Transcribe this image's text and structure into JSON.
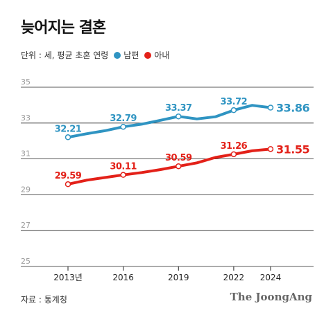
{
  "title": "늦어지는 결혼",
  "subtitle": "단위 : 세, 평균 초혼 연령",
  "source": "자료 : 통계청",
  "brand": "The JoongAng",
  "chart_data": {
    "type": "line",
    "ylim": [
      25,
      35
    ],
    "yticks": [
      "35",
      "33",
      "31",
      "29",
      "27",
      "25"
    ],
    "xticks": [
      {
        "x": 2013,
        "label": "2013년"
      },
      {
        "x": 2016,
        "label": "2016"
      },
      {
        "x": 2019,
        "label": "2019"
      },
      {
        "x": 2022,
        "label": "2022"
      },
      {
        "x": 2024,
        "label": "2024"
      }
    ],
    "x": [
      2013,
      2014,
      2015,
      2016,
      2017,
      2018,
      2019,
      2020,
      2021,
      2022,
      2023,
      2024
    ],
    "series": [
      {
        "name": "남편",
        "color": "#2f94c2",
        "values": [
          32.21,
          32.4,
          32.57,
          32.79,
          32.94,
          33.15,
          33.37,
          33.23,
          33.35,
          33.72,
          33.99,
          33.86
        ],
        "labels": [
          {
            "x": 2013,
            "text": "32.21"
          },
          {
            "x": 2016,
            "text": "32.79"
          },
          {
            "x": 2019,
            "text": "33.37"
          },
          {
            "x": 2022,
            "text": "33.72"
          },
          {
            "x": 2024,
            "text": "33.86"
          }
        ]
      },
      {
        "name": "아내",
        "color": "#e32119",
        "values": [
          29.59,
          29.81,
          29.96,
          30.11,
          30.24,
          30.4,
          30.59,
          30.78,
          31.08,
          31.26,
          31.45,
          31.55
        ],
        "labels": [
          {
            "x": 2013,
            "text": "29.59"
          },
          {
            "x": 2016,
            "text": "30.11"
          },
          {
            "x": 2019,
            "text": "30.59"
          },
          {
            "x": 2022,
            "text": "31.26"
          },
          {
            "x": 2024,
            "text": "31.55"
          }
        ]
      }
    ]
  }
}
